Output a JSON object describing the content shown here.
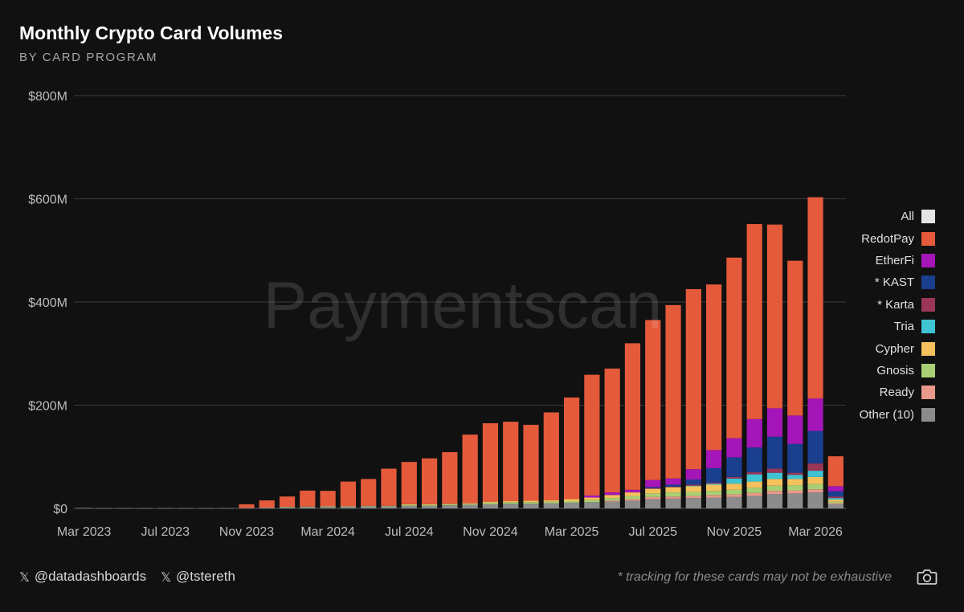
{
  "header": {
    "title": "Monthly Crypto Card Volumes",
    "subtitle": "BY CARD PROGRAM"
  },
  "watermark": "Paymentscan",
  "footer": {
    "handles": [
      "@datadashboards",
      "@tstereth"
    ],
    "note": "* tracking for these cards may not be exhaustive",
    "x_icon": "x-logo-icon",
    "camera_icon": "camera-icon"
  },
  "legend": [
    {
      "label": "All",
      "color": "#e6e6e6"
    },
    {
      "label": "RedotPay",
      "color": "#e45a3b"
    },
    {
      "label": "EtherFi",
      "color": "#a516b8"
    },
    {
      "label": "* KAST",
      "color": "#1b3f8f"
    },
    {
      "label": "* Karta",
      "color": "#9c3659"
    },
    {
      "label": "Tria",
      "color": "#3ec4d3"
    },
    {
      "label": "Cypher",
      "color": "#f5c15c"
    },
    {
      "label": "Gnosis",
      "color": "#a8cf73"
    },
    {
      "label": "Ready",
      "color": "#e8998a"
    },
    {
      "label": "Other (10)",
      "color": "#8c8c8c"
    }
  ],
  "chart_data": {
    "type": "bar",
    "stacked": true,
    "categories": [
      "2023-03",
      "2023-04",
      "2023-05",
      "2023-06",
      "2023-07",
      "2023-08",
      "2023-09",
      "2023-10",
      "2023-11",
      "2023-12",
      "2024-01",
      "2024-02",
      "2024-03",
      "2024-04",
      "2024-05",
      "2024-06",
      "2024-07",
      "2024-08",
      "2024-09",
      "2024-10",
      "2024-11",
      "2024-12",
      "2025-01",
      "2025-02",
      "2025-03",
      "2025-04",
      "2025-05",
      "2025-06",
      "2025-07",
      "2025-08",
      "2025-09",
      "2025-10",
      "2025-11",
      "2025-12",
      "2026-01",
      "2026-02",
      "2026-03",
      "2026-04"
    ],
    "x_tick_labels": [
      "Mar 2023",
      "Jul 2023",
      "Nov 2023",
      "Mar 2024",
      "Jul 2024",
      "Nov 2024",
      "Mar 2025",
      "Jul 2025",
      "Nov 2025",
      "Mar 2026"
    ],
    "y_tick_labels": [
      "$0",
      "$200M",
      "$400M",
      "$600M",
      "$800M"
    ],
    "ylim": [
      0,
      800
    ],
    "y_unit": "$M",
    "grid": true,
    "legend_position": "right",
    "series": [
      {
        "name": "Other (10)",
        "color": "#8c8c8c",
        "values": [
          1,
          0.5,
          0.5,
          0.5,
          0.5,
          0.5,
          0.5,
          0.5,
          1,
          1.5,
          2,
          2.5,
          3,
          3,
          4,
          4,
          5,
          5,
          6,
          7,
          8,
          9,
          9,
          10,
          11,
          12,
          13,
          15,
          18,
          19,
          20,
          21,
          22,
          24,
          28,
          29,
          31,
          8
        ]
      },
      {
        "name": "Ready",
        "color": "#e8998a",
        "values": [
          0,
          0,
          0,
          0,
          0,
          0,
          0,
          0,
          0,
          0,
          0,
          0,
          0,
          0,
          0,
          0,
          0,
          0,
          0,
          0,
          0,
          0,
          0,
          0,
          0,
          0,
          2,
          3,
          4,
          4,
          4,
          5,
          5,
          6,
          6,
          6,
          6,
          2
        ]
      },
      {
        "name": "Gnosis",
        "color": "#a8cf73",
        "values": [
          0,
          0,
          0,
          0,
          0,
          0,
          0,
          0,
          0,
          0,
          1,
          1,
          1,
          1,
          1,
          1,
          2,
          2,
          2,
          2,
          3,
          3,
          3,
          3,
          3,
          4,
          5,
          6,
          7,
          8,
          8,
          8,
          9,
          10,
          10,
          10,
          10,
          3
        ]
      },
      {
        "name": "Cypher",
        "color": "#f5c15c",
        "values": [
          0,
          0,
          0,
          0,
          0,
          0,
          0,
          0,
          0,
          0,
          0,
          0,
          0,
          0,
          0,
          0,
          1,
          1,
          1,
          1,
          2,
          2,
          3,
          3,
          4,
          5,
          6,
          7,
          9,
          10,
          11,
          12,
          12,
          12,
          13,
          12,
          14,
          4
        ]
      },
      {
        "name": "Tria",
        "color": "#3ec4d3",
        "values": [
          0,
          0,
          0,
          0,
          0,
          0,
          0,
          0,
          0,
          0,
          0,
          0,
          0,
          0,
          0,
          0,
          0,
          0,
          0,
          0,
          0,
          0,
          0,
          0,
          0,
          0,
          0,
          0,
          0,
          0,
          1,
          2,
          10,
          14,
          12,
          8,
          12,
          3
        ]
      },
      {
        "name": "* Karta",
        "color": "#9c3659",
        "values": [
          0,
          0,
          0,
          0,
          0,
          0,
          0,
          0,
          0,
          0,
          0,
          0,
          0,
          0,
          0,
          0,
          0,
          0,
          0,
          0,
          0,
          0,
          0,
          0,
          0,
          0,
          0,
          0,
          1,
          1,
          2,
          2,
          3,
          4,
          8,
          4,
          14,
          3
        ]
      },
      {
        "name": "* KAST",
        "color": "#1b3f8f",
        "values": [
          0,
          0,
          0,
          0,
          0,
          0,
          0,
          0,
          0,
          0,
          0,
          0,
          0,
          0,
          0,
          0,
          0,
          0,
          0,
          0,
          0,
          0,
          0,
          0,
          0,
          0,
          0,
          0,
          2,
          4,
          10,
          28,
          38,
          48,
          62,
          56,
          63,
          10
        ]
      },
      {
        "name": "EtherFi",
        "color": "#a516b8",
        "values": [
          0,
          0,
          0,
          0,
          0,
          0,
          0,
          0,
          0,
          0,
          0,
          0,
          0,
          0,
          0,
          0,
          0,
          0,
          0,
          0,
          0,
          0,
          0,
          0,
          0,
          4,
          5,
          5,
          14,
          12,
          20,
          35,
          37,
          55,
          55,
          55,
          63,
          10
        ]
      },
      {
        "name": "RedotPay",
        "color": "#e45a3b",
        "values": [
          0,
          0,
          0,
          0,
          0,
          0,
          0,
          0,
          7,
          14,
          20,
          31,
          30,
          48,
          52,
          72,
          82,
          89,
          100,
          133,
          152,
          154,
          147,
          170,
          197,
          234,
          240,
          284,
          310,
          336,
          349,
          321,
          350,
          378,
          356,
          300,
          390,
          58
        ]
      }
    ]
  }
}
